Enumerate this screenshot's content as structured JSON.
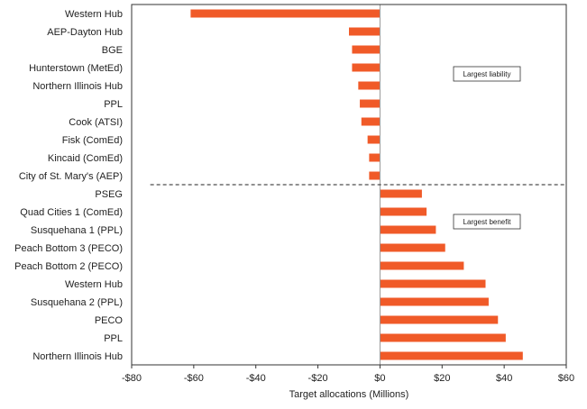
{
  "chart_data": {
    "type": "bar",
    "orientation": "horizontal",
    "xlabel": "Target allocations (Millions)",
    "xlim": [
      -80,
      60
    ],
    "x_ticks": [
      "-$80",
      "-$60",
      "-$40",
      "-$20",
      "$0",
      "$20",
      "$40",
      "$60"
    ],
    "x_tick_values": [
      -80,
      -60,
      -40,
      -20,
      0,
      20,
      40,
      60
    ],
    "categories": [
      "Western Hub",
      "AEP-Dayton Hub",
      "BGE",
      "Hunterstown (MetEd)",
      "Northern Illinois Hub",
      "PPL",
      "Cook (ATSI)",
      "Fisk (ComEd)",
      "Kincaid (ComEd)",
      "City of St. Mary's (AEP)",
      "PSEG",
      "Quad Cities 1 (ComEd)",
      "Susquehana 1 (PPL)",
      "Peach Bottom 3 (PECO)",
      "Peach Bottom 2 (PECO)",
      "Western Hub",
      "Susquehana 2 (PPL)",
      "PECO",
      "PPL",
      "Northern Illinois Hub"
    ],
    "values": [
      -61,
      -10,
      -9,
      -9,
      -7,
      -6.5,
      -6,
      -4,
      -3.5,
      -3.5,
      13.5,
      15,
      18,
      21,
      27,
      34,
      35,
      38,
      40.5,
      46
    ],
    "divider_after_index": 9,
    "annotations": [
      "Largest liability",
      "Largest benefit"
    ],
    "bar_color": "#f05a28",
    "grid": false
  }
}
